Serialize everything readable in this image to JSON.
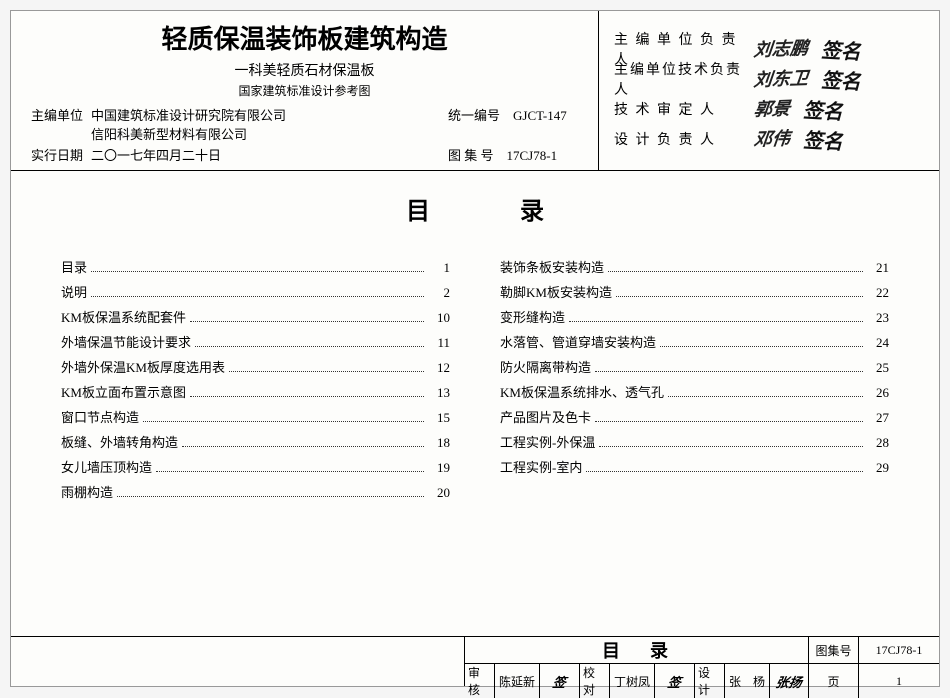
{
  "header": {
    "main_title": "轻质保温装饰板建筑构造",
    "subtitle1": "一科美轻质石材保温板",
    "subtitle2": "国家建筑标准设计参考图",
    "editor_label": "主编单位",
    "editor_value1": "中国建筑标准设计研究院有限公司",
    "editor_value2": "信阳科美新型材料有限公司",
    "date_label": "实行日期",
    "date_value": "二〇一七年四月二十日",
    "code1_label": "统一编号",
    "code1_value": "GJCT-147",
    "code2_label": "图 集 号",
    "code2_value": "17CJ78-1"
  },
  "signatures": {
    "row1_label": "主 编 单 位 负 责 人",
    "row2_label": "主编单位技术负责人",
    "row3_label": "技 术 审 定 人",
    "row4_label": "设 计 负 责 人"
  },
  "toc": {
    "title": "目录",
    "left": [
      {
        "label": "目录",
        "page": "1"
      },
      {
        "label": "说明",
        "page": "2"
      },
      {
        "label": "KM板保温系统配套件",
        "page": "10"
      },
      {
        "label": "外墙保温节能设计要求",
        "page": "11"
      },
      {
        "label": "外墙外保温KM板厚度选用表",
        "page": "12"
      },
      {
        "label": "KM板立面布置示意图",
        "page": "13"
      },
      {
        "label": "窗口节点构造",
        "page": "15"
      },
      {
        "label": "板缝、外墙转角构造",
        "page": "18"
      },
      {
        "label": "女儿墙压顶构造",
        "page": "19"
      },
      {
        "label": "雨棚构造",
        "page": "20"
      }
    ],
    "right": [
      {
        "label": "装饰条板安装构造",
        "page": "21"
      },
      {
        "label": "勒脚KM板安装构造",
        "page": "22"
      },
      {
        "label": "变形缝构造",
        "page": "23"
      },
      {
        "label": "水落管、管道穿墙安装构造",
        "page": "24"
      },
      {
        "label": "防火隔离带构造",
        "page": "25"
      },
      {
        "label": "KM板保温系统排水、透气孔",
        "page": "26"
      },
      {
        "label": "产品图片及色卡",
        "page": "27"
      },
      {
        "label": "工程实例-外保温",
        "page": "28"
      },
      {
        "label": "工程实例-室内",
        "page": "29"
      }
    ]
  },
  "footer": {
    "big_title": "目录",
    "atlas_label": "图集号",
    "atlas_value": "17CJ78-1",
    "review_label": "审核",
    "review_name": "陈延新",
    "proof_label": "校对",
    "proof_name": "丁树凤",
    "design_label": "设计",
    "design_name": "张　杨",
    "page_label": "页",
    "page_value": "1"
  }
}
